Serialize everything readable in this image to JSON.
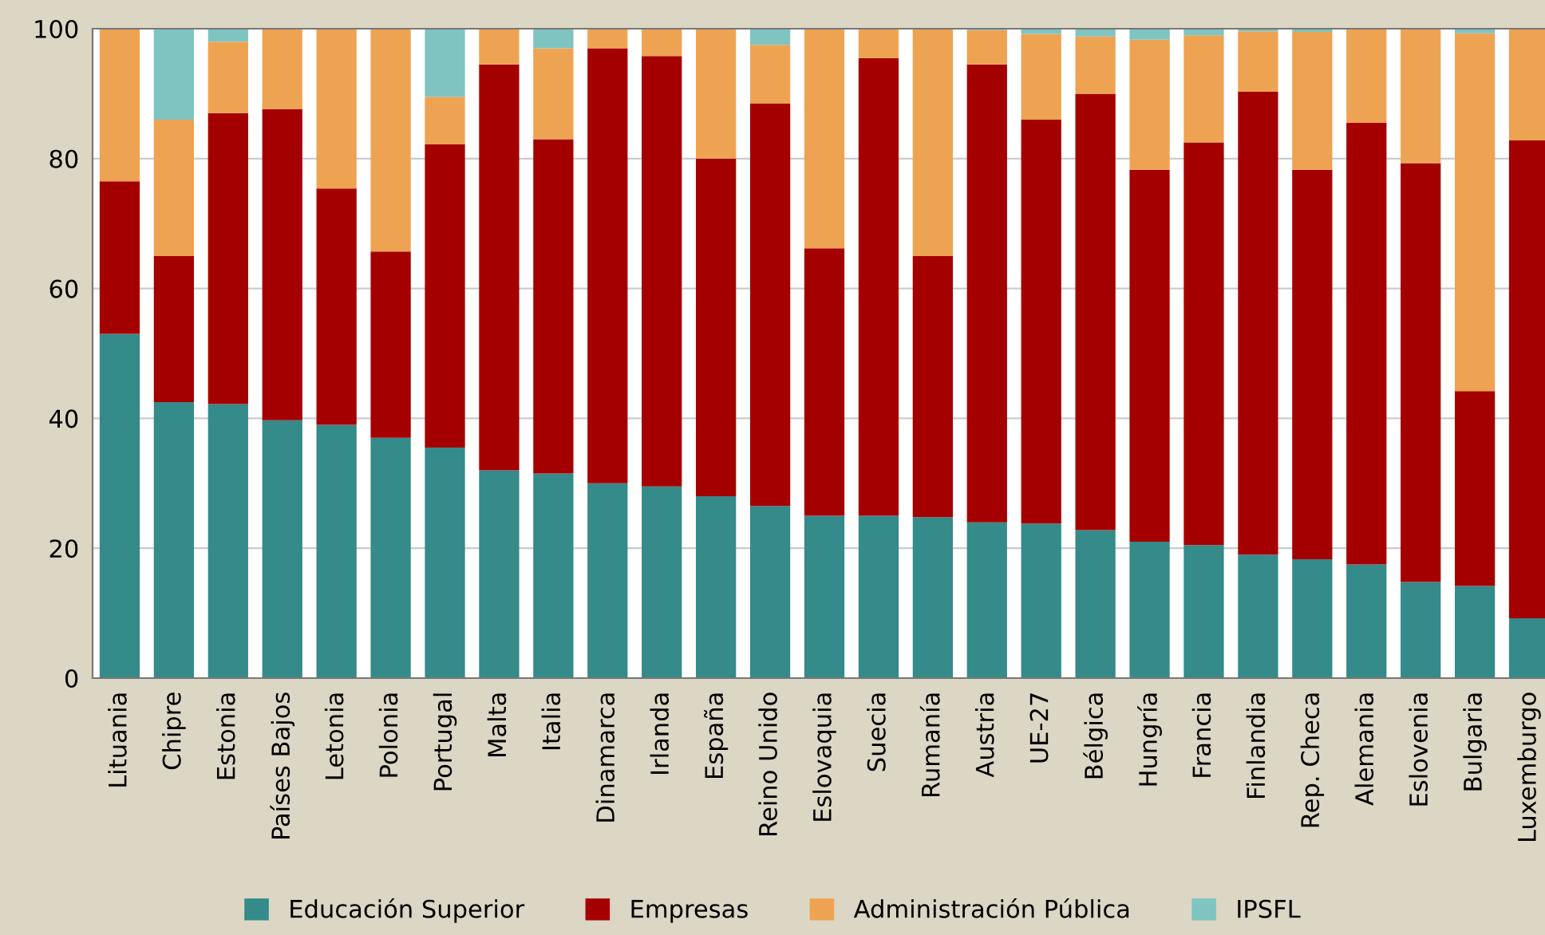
{
  "chart_data": {
    "type": "bar",
    "stacked": true,
    "categories": [
      "Lituania",
      "Chipre",
      "Estonia",
      "Países Bajos",
      "Letonia",
      "Polonia",
      "Portugal",
      "Malta",
      "Italia",
      "Dinamarca",
      "Irlanda",
      "España",
      "Reino Unido",
      "Eslovaquia",
      "Suecia",
      "Rumanía",
      "Austria",
      "UE-27",
      "Bélgica",
      "Hungría",
      "Francia",
      "Finlandia",
      "Rep. Checa",
      "Alemania",
      "Eslovenia",
      "Bulgaria",
      "Luxemburgo"
    ],
    "series": [
      {
        "name": "Educación Superior",
        "color": "#358a8a",
        "values": [
          53,
          42.5,
          42.2,
          39.7,
          39,
          37,
          35.5,
          32,
          31.5,
          30,
          29.5,
          28,
          26.5,
          25,
          25,
          24.8,
          24,
          23.8,
          22.8,
          21,
          20.5,
          19,
          18.3,
          17.5,
          14.8,
          14.2,
          9.2
        ]
      },
      {
        "name": "Empresas",
        "color": "#a50000",
        "values": [
          23.5,
          22.5,
          44.8,
          47.9,
          36.4,
          28.7,
          46.7,
          62.5,
          51.5,
          67,
          66.3,
          52,
          62,
          41.2,
          70.5,
          40.2,
          70.5,
          62.2,
          67.2,
          57.3,
          62,
          71.3,
          60,
          68,
          64.5,
          30,
          73.6
        ]
      },
      {
        "name": "Administración Pública",
        "color": "#eea352",
        "values": [
          23.5,
          21,
          11,
          12.4,
          24.6,
          34.3,
          7.3,
          5.5,
          14,
          3,
          4.2,
          20,
          9,
          33.8,
          4.5,
          35,
          5.3,
          13.2,
          8.8,
          20,
          16.5,
          9.3,
          21.2,
          14.5,
          20.7,
          55.1,
          17.2
        ]
      },
      {
        "name": "IPSFL",
        "color": "#7fc4c0",
        "values": [
          0,
          14,
          2,
          0,
          0,
          0,
          10.5,
          0,
          3,
          0,
          0,
          0,
          2.5,
          0,
          0,
          0,
          0.2,
          0.8,
          1.2,
          1.7,
          1,
          0.4,
          0.5,
          0,
          0,
          0.7,
          0
        ]
      }
    ],
    "ylim": [
      0,
      100
    ],
    "yticks": [
      0,
      20,
      40,
      60,
      80,
      100
    ],
    "grid": "y",
    "legend": "bottom"
  }
}
